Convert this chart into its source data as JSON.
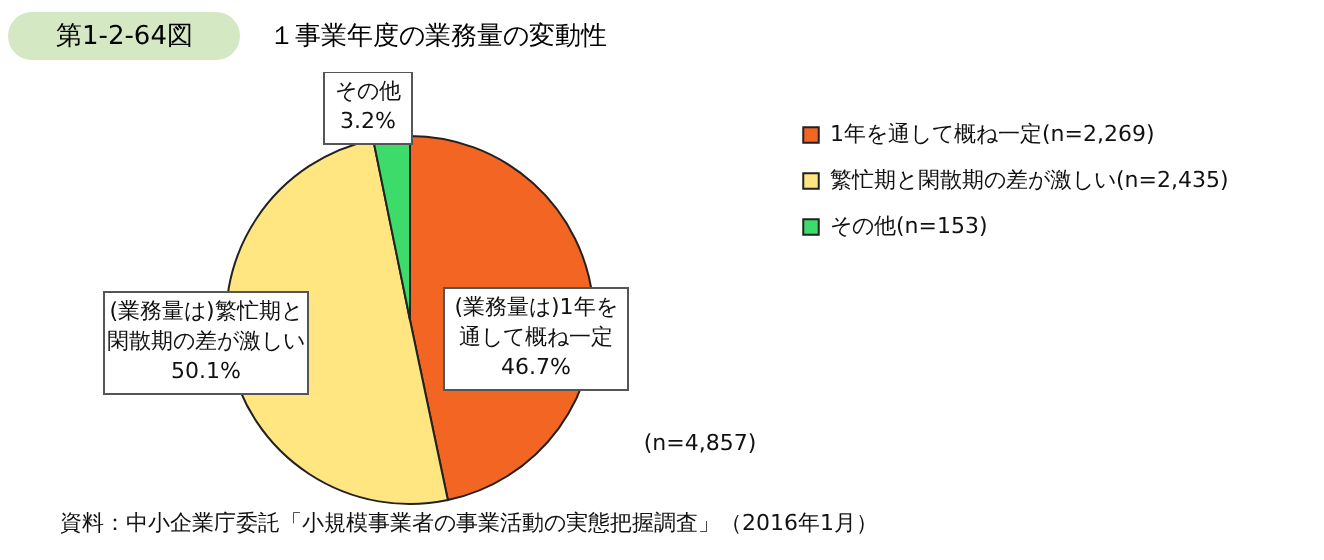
{
  "chart_data": {
    "type": "pie",
    "title": "第1-2-64図",
    "subtitle": "１事業年度の業務量の変動性",
    "categories": [
      "1年を通して概ね一定(n=2,269)",
      "繁忙期と閑散期の差が激しい(n=2,435)",
      "その他(n=153)"
    ],
    "values": [
      46.7,
      50.1,
      3.2
    ],
    "colors": [
      "#f26522",
      "#ffe680",
      "#3ddc6a"
    ],
    "value_labels": [
      "46.7%",
      "50.1%",
      "3.2%"
    ],
    "legend": "right",
    "annotations": [
      "(業務量は)1年を通して概ね一定",
      "(業務量は)繁忙期と閑散期の差が激しい",
      "その他",
      "(n=4,857)",
      "資料：中小企業庁委託「小規模事業者の事業活動の実態把握調査」（2016年1月）"
    ]
  }
}
